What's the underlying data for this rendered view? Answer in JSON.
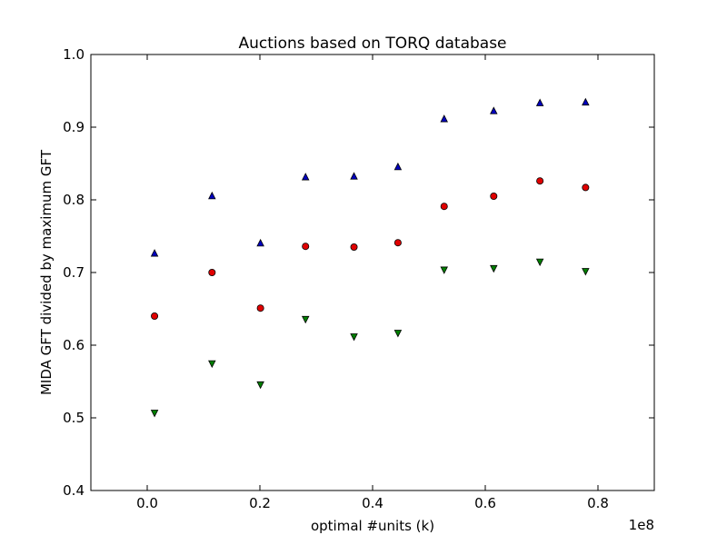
{
  "chart_data": {
    "type": "scatter",
    "title": "Auctions based on TORQ database",
    "xlabel": "optimal #units (k)",
    "ylabel": "MIDA GFT divided by maximum GFT",
    "x_offset_label": "1e8",
    "xlim": [
      -0.1,
      0.9
    ],
    "ylim": [
      0.4,
      1.0
    ],
    "x_ticks": [
      0.0,
      0.2,
      0.4,
      0.6,
      0.8
    ],
    "x_tick_labels": [
      "0.0",
      "0.2",
      "0.4",
      "0.6",
      "0.8"
    ],
    "y_ticks": [
      0.4,
      0.5,
      0.6,
      0.7,
      0.8,
      0.9,
      1.0
    ],
    "y_tick_labels": [
      "0.4",
      "0.5",
      "0.6",
      "0.7",
      "0.8",
      "0.9",
      "1.0"
    ],
    "grid": false,
    "legend": "none",
    "x": [
      0.013,
      0.115,
      0.201,
      0.281,
      0.367,
      0.445,
      0.527,
      0.615,
      0.697,
      0.778
    ],
    "series": [
      {
        "marker": "triangle-up",
        "color": "#0000bf",
        "values": [
          0.726,
          0.805,
          0.74,
          0.831,
          0.832,
          0.845,
          0.911,
          0.922,
          0.933,
          0.934
        ]
      },
      {
        "marker": "circle",
        "color": "#e00000",
        "values": [
          0.64,
          0.7,
          0.651,
          0.736,
          0.735,
          0.741,
          0.791,
          0.805,
          0.826,
          0.817
        ]
      },
      {
        "marker": "triangle-down",
        "color": "#007f00",
        "values": [
          0.507,
          0.575,
          0.546,
          0.636,
          0.612,
          0.617,
          0.704,
          0.706,
          0.715,
          0.702
        ]
      }
    ]
  }
}
